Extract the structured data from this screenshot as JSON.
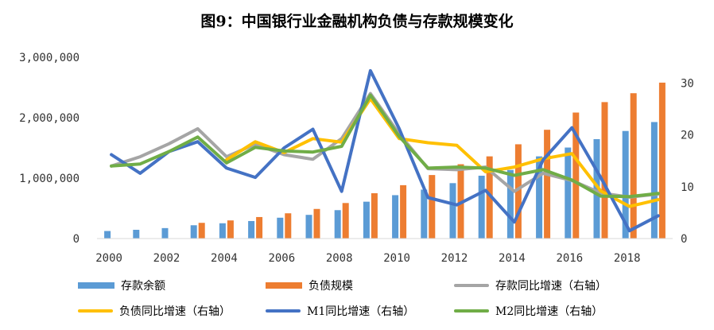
{
  "colors": {
    "deposit": "#5B9BD5",
    "liability": "#ED7D31",
    "deposit_yoy": "#A5A5A5",
    "liability_yoy": "#FFC000",
    "m1_yoy": "#4472C4",
    "m2_yoy": "#70AD47",
    "axis": "#D9D9D9"
  },
  "chart_data": {
    "type": "bar+line",
    "title": "图9：中国银行业金融机构负债与存款规模变化",
    "categories": [
      2000,
      2001,
      2002,
      2003,
      2004,
      2005,
      2006,
      2007,
      2008,
      2009,
      2010,
      2011,
      2012,
      2013,
      2014,
      2015,
      2016,
      2017,
      2018,
      2019
    ],
    "x_tick_labels": [
      "2000",
      "2002",
      "2004",
      "2006",
      "2008",
      "2010",
      "2012",
      "2014",
      "2016",
      "2018"
    ],
    "left_axis": {
      "ylim": [
        0,
        3000000
      ],
      "tick_labels": [
        "0",
        "1,000,000",
        "2,000,000",
        "3,000,000"
      ]
    },
    "right_axis": {
      "ylim": [
        0,
        35
      ],
      "tick_labels": [
        "0",
        "10",
        "20",
        "30"
      ]
    },
    "bar_series": [
      {
        "name": "存款余额",
        "axis": "left",
        "values": [
          125000,
          145000,
          173000,
          220000,
          253000,
          290000,
          345000,
          392000,
          470000,
          610000,
          718000,
          810000,
          917000,
          1040000,
          1135000,
          1360000,
          1506000,
          1645000,
          1780000,
          1928000
        ]
      },
      {
        "name": "负债规模",
        "axis": "left",
        "values": [
          null,
          null,
          null,
          260000,
          300000,
          356000,
          418000,
          490000,
          588000,
          750000,
          883000,
          1051000,
          1230000,
          1360000,
          1560000,
          1800000,
          2085000,
          2258000,
          2405000,
          2580000
        ]
      }
    ],
    "line_series": [
      {
        "name": "存款同比增速（右轴）",
        "axis": "right",
        "values": [
          14,
          15.8,
          18.3,
          21.2,
          15.8,
          18.2,
          16.2,
          15.3,
          19.3,
          28,
          20.2,
          13.5,
          13.3,
          13.8,
          9.1,
          12.6,
          11.2,
          8.8,
          8,
          8.6
        ]
      },
      {
        "name": "负债同比增速（右轴）",
        "axis": "right",
        "values": [
          null,
          null,
          null,
          null,
          15.2,
          18.7,
          16.6,
          19.3,
          18.6,
          27,
          19.3,
          18.5,
          18,
          12.9,
          13.8,
          15.4,
          16.4,
          9.2,
          6.2,
          7.5
        ]
      },
      {
        "name": "M1同比增速（右轴）",
        "axis": "right",
        "values": [
          16.2,
          12.6,
          16.8,
          18.7,
          13.6,
          11.8,
          17.5,
          21.1,
          9.1,
          32.4,
          21.2,
          7.9,
          6.5,
          9.3,
          3.2,
          15.2,
          21.4,
          11.8,
          1.5,
          4.4
        ]
      },
      {
        "name": "M2同比增速（右轴）",
        "axis": "right",
        "values": [
          14,
          14.4,
          16.8,
          19.6,
          14.6,
          17.6,
          16.9,
          16.7,
          17.8,
          27.7,
          19.7,
          13.6,
          13.8,
          13.6,
          12.2,
          13.3,
          11.3,
          8.2,
          8.1,
          8.7
        ]
      }
    ]
  },
  "legend": {
    "row1": [
      "存款余额",
      "负债规模",
      "存款同比增速（右轴）"
    ],
    "row2": [
      "负债同比增速（右轴）",
      "M1同比增速（右轴）",
      "M2同比增速（右轴）"
    ]
  }
}
